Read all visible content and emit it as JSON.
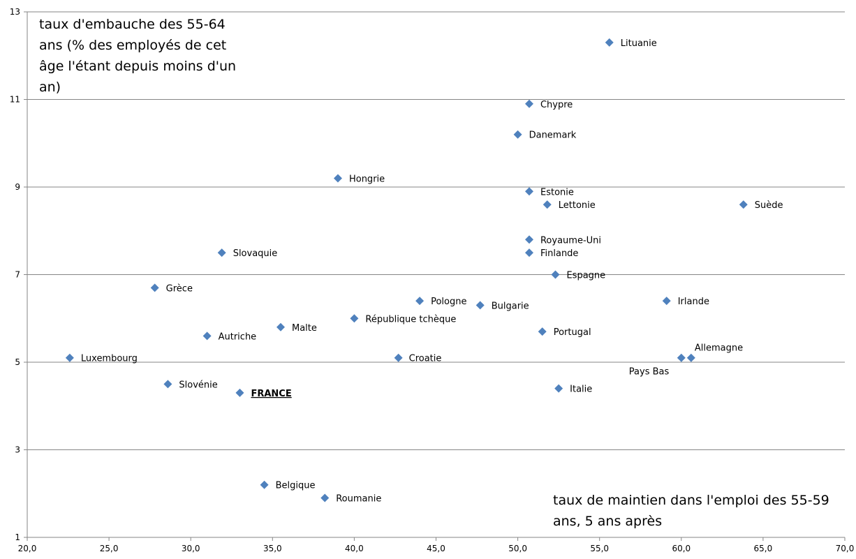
{
  "chart_data": {
    "type": "scatter",
    "title": "",
    "ylabel": "taux d'embauche  des 55-64 ans (% des employés de cet âge l'étant depuis moins d'un an)",
    "xlabel": "taux de maintien dans l'emploi  des 55-59 ans, 5 ans après",
    "xlim": [
      20,
      70
    ],
    "ylim": [
      1,
      13
    ],
    "xticks": [
      "20,0",
      "25,0",
      "30,0",
      "35,0",
      "40,0",
      "45,0",
      "50,0",
      "55,0",
      "60,0",
      "65,0",
      "70,0"
    ],
    "yticks": [
      "1",
      "3",
      "5",
      "7",
      "9",
      "11",
      "13"
    ],
    "grid": "horizontal",
    "marker_color": "#4F81BD",
    "points": [
      {
        "label": "Lituanie",
        "x": 55.6,
        "y": 12.3
      },
      {
        "label": "Chypre",
        "x": 50.7,
        "y": 10.9
      },
      {
        "label": "Danemark",
        "x": 50.0,
        "y": 10.2
      },
      {
        "label": "Hongrie",
        "x": 39.0,
        "y": 9.2
      },
      {
        "label": "Estonie",
        "x": 50.7,
        "y": 8.9
      },
      {
        "label": "Lettonie",
        "x": 51.8,
        "y": 8.6
      },
      {
        "label": "Suède",
        "x": 63.8,
        "y": 8.6
      },
      {
        "label": "Royaume-Uni",
        "x": 50.7,
        "y": 7.8
      },
      {
        "label": "Slovaquie",
        "x": 31.9,
        "y": 7.5
      },
      {
        "label": "Finlande",
        "x": 50.7,
        "y": 7.5
      },
      {
        "label": "Espagne",
        "x": 52.3,
        "y": 7.0
      },
      {
        "label": "Grèce",
        "x": 27.8,
        "y": 6.7
      },
      {
        "label": "Pologne",
        "x": 44.0,
        "y": 6.4
      },
      {
        "label": "Irlande",
        "x": 59.1,
        "y": 6.4
      },
      {
        "label": "Bulgarie",
        "x": 47.7,
        "y": 6.3
      },
      {
        "label": "République tchèque",
        "x": 40.0,
        "y": 6.0
      },
      {
        "label": "Malte",
        "x": 35.5,
        "y": 5.8
      },
      {
        "label": "Portugal",
        "x": 51.5,
        "y": 5.7
      },
      {
        "label": "Autriche",
        "x": 31.0,
        "y": 5.6
      },
      {
        "label": "Luxembourg",
        "x": 22.6,
        "y": 5.1
      },
      {
        "label": "Croatie",
        "x": 42.7,
        "y": 5.1
      },
      {
        "label": "Pays Bas",
        "x": 60.0,
        "y": 5.1
      },
      {
        "label": "Allemagne",
        "x": 60.6,
        "y": 5.1
      },
      {
        "label": "Slovénie",
        "x": 28.6,
        "y": 4.5
      },
      {
        "label": "Italie",
        "x": 52.5,
        "y": 4.4
      },
      {
        "label": "FRANCE",
        "x": 33.0,
        "y": 4.3,
        "emphasis": true
      },
      {
        "label": "Belgique",
        "x": 34.5,
        "y": 2.2
      },
      {
        "label": "Roumanie",
        "x": 38.2,
        "y": 1.9
      }
    ]
  }
}
